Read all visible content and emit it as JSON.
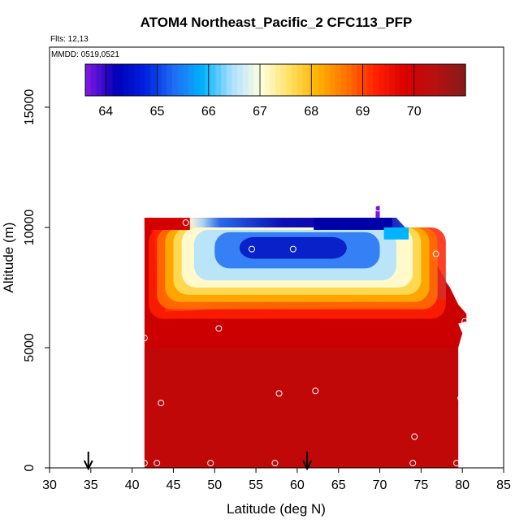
{
  "chart_data": {
    "type": "heatmap",
    "title": "ATOM4 Northeast_Pacific_2 CFC113_PFP",
    "flights_label": "Flts: 12,13",
    "dates_label": "MMDD: 0519,0521",
    "xlabel": "Latitude (deg N)",
    "ylabel": "Altitude (m)",
    "xlim": [
      30,
      85
    ],
    "ylim": [
      0,
      17500
    ],
    "x_ticks": [
      "30",
      "35",
      "40",
      "45",
      "50",
      "55",
      "60",
      "65",
      "70",
      "75",
      "80",
      "85"
    ],
    "y_ticks": [
      "0",
      "5000",
      "10000",
      "15000"
    ],
    "colorbar": {
      "min": 63.6,
      "max": 71.0,
      "ticks": [
        "64",
        "65",
        "66",
        "67",
        "68",
        "69",
        "70"
      ],
      "colors": [
        "#7a16e0",
        "#0000b8",
        "#0022e0",
        "#1f6ef5",
        "#00b4ff",
        "#aee0ff",
        "#ffffe0",
        "#ffe060",
        "#ffb000",
        "#ff7000",
        "#ff2000",
        "#d80000",
        "#b81010",
        "#8a1a1a"
      ]
    },
    "curtain_profile": [
      [
        41.5,
        10400
      ],
      [
        42,
        10400
      ],
      [
        63,
        10400
      ],
      [
        71,
        10400
      ],
      [
        72,
        10400
      ],
      [
        73,
        9800
      ],
      [
        75,
        9300
      ],
      [
        76,
        8800
      ],
      [
        77,
        8400
      ],
      [
        77.5,
        8000
      ],
      [
        78.5,
        7500
      ],
      [
        79.5,
        6800
      ],
      [
        80.5,
        6400
      ],
      [
        80.5,
        6100
      ],
      [
        79.5,
        6000
      ],
      [
        80,
        5600
      ],
      [
        79.5,
        5000
      ],
      [
        79.5,
        2500
      ],
      [
        79.5,
        0
      ]
    ],
    "sample_points": [
      {
        "lat": 41.0,
        "alt": 10400
      },
      {
        "lat": 46.5,
        "alt": 10200
      },
      {
        "lat": 54.5,
        "alt": 9100
      },
      {
        "lat": 59.5,
        "alt": 9100
      },
      {
        "lat": 69.8,
        "alt": 10800
      },
      {
        "lat": 76.8,
        "alt": 8900
      },
      {
        "lat": 80.3,
        "alt": 6100
      },
      {
        "lat": 41.5,
        "alt": 5400
      },
      {
        "lat": 50.5,
        "alt": 5800
      },
      {
        "lat": 43.5,
        "alt": 2700
      },
      {
        "lat": 57.8,
        "alt": 3100
      },
      {
        "lat": 62.2,
        "alt": 3200
      },
      {
        "lat": 79.8,
        "alt": 2900
      },
      {
        "lat": 74.2,
        "alt": 1300
      },
      {
        "lat": 41.5,
        "alt": 200
      },
      {
        "lat": 43.0,
        "alt": 200
      },
      {
        "lat": 49.5,
        "alt": 200
      },
      {
        "lat": 57.3,
        "alt": 200
      },
      {
        "lat": 74.0,
        "alt": 200
      },
      {
        "lat": 79.3,
        "alt": 200
      }
    ],
    "markers": [
      34.7,
      61.2
    ]
  }
}
